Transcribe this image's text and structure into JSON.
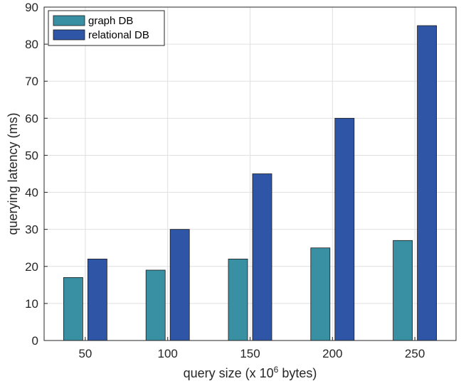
{
  "chart_data": {
    "type": "bar",
    "categories": [
      "50",
      "100",
      "150",
      "200",
      "250"
    ],
    "series": [
      {
        "name": "graph DB",
        "values": [
          17,
          19,
          22,
          25,
          27
        ],
        "color": "#3890a2"
      },
      {
        "name": "relational DB",
        "values": [
          22,
          30,
          45,
          60,
          85
        ],
        "color": "#2e55a6"
      }
    ],
    "xlabel": "query size (x 10",
    "xlabel_sup": "6",
    "xlabel_suffix": " bytes)",
    "ylabel": "querying latency (ms)",
    "ylim": [
      0,
      90
    ],
    "yticks": [
      "0",
      "10",
      "20",
      "30",
      "40",
      "50",
      "60",
      "70",
      "80",
      "90"
    ],
    "grid": true,
    "legend_position": "top-left",
    "colors": {
      "grid": "#e0e0e0",
      "axis": "#262626"
    }
  }
}
